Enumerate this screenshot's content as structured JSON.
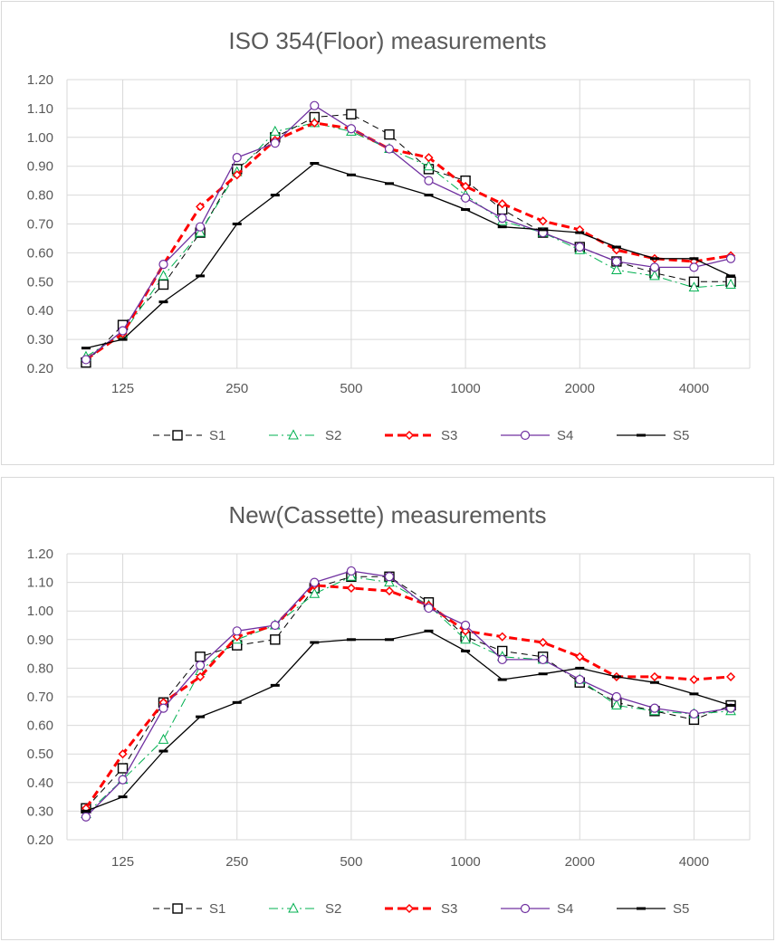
{
  "chart_data": [
    {
      "type": "line",
      "title": "ISO 354(Floor) measurements",
      "xlabel": "",
      "ylabel": "",
      "x_scale": "log",
      "x": [
        100,
        125,
        160,
        200,
        250,
        315,
        400,
        500,
        630,
        800,
        1000,
        1250,
        1600,
        2000,
        2500,
        3150,
        4000,
        5000
      ],
      "x_tick_labels": [
        "125",
        "250",
        "500",
        "1000",
        "2000",
        "4000"
      ],
      "x_tick_values": [
        125,
        250,
        500,
        1000,
        2000,
        4000
      ],
      "ylim": [
        0.2,
        1.2
      ],
      "y_ticks": [
        "0.20",
        "0.30",
        "0.40",
        "0.50",
        "0.60",
        "0.70",
        "0.80",
        "0.90",
        "1.00",
        "1.10",
        "1.20"
      ],
      "grid": true,
      "legend_position": "bottom",
      "series": [
        {
          "name": "S1",
          "color": "#000000",
          "dash": "7,5",
          "marker": "square",
          "width": 1,
          "values": [
            0.22,
            0.35,
            0.49,
            0.67,
            0.89,
            1.0,
            1.07,
            1.08,
            1.01,
            0.89,
            0.85,
            0.75,
            0.67,
            0.62,
            0.57,
            0.53,
            0.5,
            0.5
          ]
        },
        {
          "name": "S2",
          "color": "#00b050",
          "dash": "10,4,2,4",
          "marker": "triangle",
          "width": 1,
          "values": [
            0.24,
            0.32,
            0.52,
            0.67,
            0.88,
            1.02,
            1.05,
            1.02,
            0.96,
            0.9,
            0.8,
            0.71,
            0.67,
            0.61,
            0.54,
            0.52,
            0.48,
            0.49
          ]
        },
        {
          "name": "S3",
          "color": "#ff0000",
          "dash": "9,5",
          "marker": "diamond",
          "width": 3,
          "values": [
            0.23,
            0.32,
            0.56,
            0.76,
            0.87,
            0.99,
            1.05,
            1.03,
            0.96,
            0.93,
            0.83,
            0.77,
            0.71,
            0.68,
            0.61,
            0.58,
            0.57,
            0.59
          ]
        },
        {
          "name": "S4",
          "color": "#7030a0",
          "dash": "",
          "marker": "circle",
          "width": 1.3,
          "values": [
            0.23,
            0.33,
            0.56,
            0.69,
            0.93,
            0.98,
            1.11,
            1.03,
            0.96,
            0.85,
            0.79,
            0.72,
            0.67,
            0.62,
            0.57,
            0.55,
            0.55,
            0.58
          ]
        },
        {
          "name": "S5",
          "color": "#000000",
          "dash": "",
          "marker": "dash",
          "width": 1.3,
          "values": [
            0.27,
            0.3,
            0.43,
            0.52,
            0.7,
            0.8,
            0.91,
            0.87,
            0.84,
            0.8,
            0.75,
            0.69,
            0.68,
            0.67,
            0.62,
            0.58,
            0.58,
            0.52
          ]
        }
      ]
    },
    {
      "type": "line",
      "title": "New(Cassette) measurements",
      "xlabel": "",
      "ylabel": "",
      "x_scale": "log",
      "x": [
        100,
        125,
        160,
        200,
        250,
        315,
        400,
        500,
        630,
        800,
        1000,
        1250,
        1600,
        2000,
        2500,
        3150,
        4000,
        5000
      ],
      "x_tick_labels": [
        "125",
        "250",
        "500",
        "1000",
        "2000",
        "4000"
      ],
      "x_tick_values": [
        125,
        250,
        500,
        1000,
        2000,
        4000
      ],
      "ylim": [
        0.2,
        1.2
      ],
      "y_ticks": [
        "0.20",
        "0.30",
        "0.40",
        "0.50",
        "0.60",
        "0.70",
        "0.80",
        "0.90",
        "1.00",
        "1.10",
        "1.20"
      ],
      "grid": true,
      "legend_position": "bottom",
      "series": [
        {
          "name": "S1",
          "color": "#000000",
          "dash": "7,5",
          "marker": "square",
          "width": 1,
          "values": [
            0.31,
            0.45,
            0.68,
            0.84,
            0.88,
            0.9,
            1.08,
            1.12,
            1.12,
            1.03,
            0.91,
            0.86,
            0.84,
            0.75,
            0.68,
            0.65,
            0.62,
            0.67
          ]
        },
        {
          "name": "S2",
          "color": "#00b050",
          "dash": "10,4,2,4",
          "marker": "triangle",
          "width": 1,
          "values": [
            0.29,
            0.41,
            0.55,
            0.79,
            0.9,
            0.95,
            1.06,
            1.12,
            1.1,
            1.02,
            0.9,
            0.84,
            0.83,
            0.76,
            0.67,
            0.65,
            0.64,
            0.65
          ]
        },
        {
          "name": "S3",
          "color": "#ff0000",
          "dash": "9,5",
          "marker": "diamond",
          "width": 3,
          "values": [
            0.31,
            0.5,
            0.68,
            0.77,
            0.91,
            0.95,
            1.09,
            1.08,
            1.07,
            1.02,
            0.93,
            0.91,
            0.89,
            0.84,
            0.77,
            0.77,
            0.76,
            0.77
          ]
        },
        {
          "name": "S4",
          "color": "#7030a0",
          "dash": "",
          "marker": "circle",
          "width": 1.3,
          "values": [
            0.28,
            0.41,
            0.66,
            0.81,
            0.93,
            0.95,
            1.1,
            1.14,
            1.12,
            1.01,
            0.95,
            0.83,
            0.83,
            0.76,
            0.7,
            0.66,
            0.64,
            0.66
          ]
        },
        {
          "name": "S5",
          "color": "#000000",
          "dash": "",
          "marker": "dash",
          "width": 1.3,
          "values": [
            0.3,
            0.35,
            0.51,
            0.63,
            0.68,
            0.74,
            0.89,
            0.9,
            0.9,
            0.93,
            0.86,
            0.76,
            0.78,
            0.8,
            0.77,
            0.75,
            0.71,
            0.67
          ]
        }
      ]
    }
  ]
}
